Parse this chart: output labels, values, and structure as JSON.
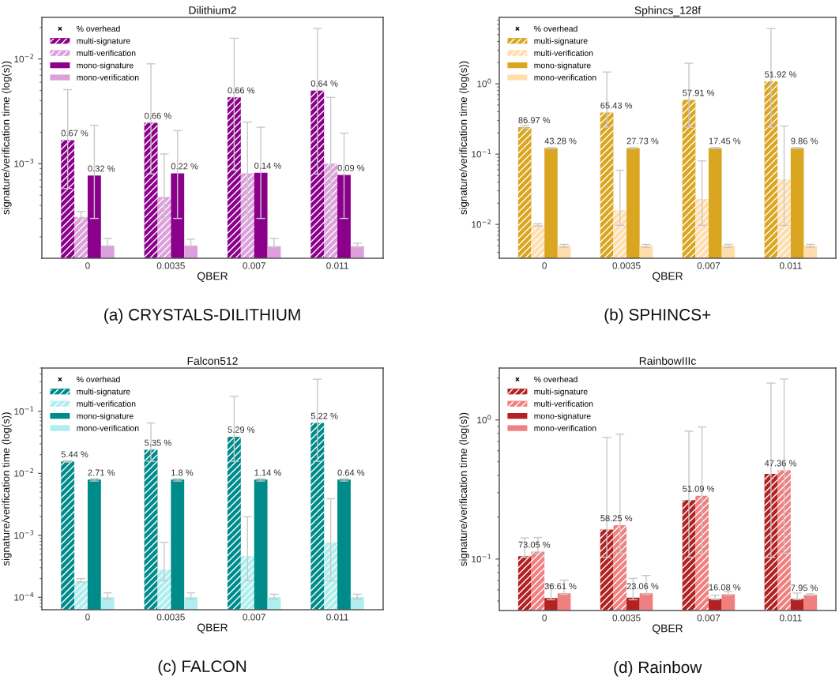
{
  "chart_data": [
    {
      "type": "bar",
      "title": "Dilithium2",
      "xlabel": "QBER",
      "ylabel": "signature/verification time (log(s))",
      "categories": [
        "0",
        "0.0035",
        "0.007",
        "0.011"
      ],
      "log": true,
      "ylim": [
        0.000125,
        0.025
      ],
      "yticks": [
        {
          "value": 0.001,
          "label": "10$^{−3}$"
        },
        {
          "value": 0.01,
          "label": "10$^{−2}$"
        }
      ],
      "legend": "top left",
      "annotations": [
        "0.67 %",
        "0.66 %",
        "0.66 %",
        "0.64 %",
        {
          "text": "0.32 %",
          "x": "0",
          "y": 0.00077
        },
        {
          "text": "0.22 %",
          "x": "0.0035",
          "y": 0.00081
        },
        {
          "text": "0.14 %",
          "x": "0.007",
          "y": 0.00082
        },
        {
          "text": "0.09 %",
          "x": "0.011",
          "y": 0.00078
        },
        "(a) CRYSTALS-DILITHIUM"
      ],
      "series": [
        {
          "name": "% overhead",
          "type": "scatter",
          "marker": "cross",
          "color": "#000000",
          "values": [
            null,
            null,
            null,
            null
          ]
        },
        {
          "name": "multi-signature",
          "color": "#8b008b",
          "line_style": "dashed",
          "values": [
            0.00168,
            0.00246,
            0.0043,
            0.005
          ],
          "errors": [
            [
              0.00058,
              0.0051
            ],
            [
              0.0008,
              0.009
            ],
            [
              0.00087,
              0.0158
            ],
            [
              0.0008,
              0.0196
            ]
          ]
        },
        {
          "name": "multi-verification",
          "color": "#dda0dd",
          "line_style": "dashed",
          "values": [
            0.00031,
            0.00048,
            0.00081,
            0.001
          ],
          "errors": [
            [
              0.0003,
              0.00035
            ],
            [
              0.0003,
              0.00124
            ],
            [
              0.0003,
              0.0025
            ],
            [
              0.0003,
              0.0043
            ]
          ]
        },
        {
          "name": "mono-signature",
          "color": "#8b008b",
          "values": [
            0.00077,
            0.00081,
            0.00082,
            0.00078
          ],
          "errors": [
            [
              0.0003,
              0.00233
            ],
            [
              0.0003,
              0.00207
            ],
            [
              0.0003,
              0.00223
            ],
            [
              0.0003,
              0.00196
            ]
          ]
        },
        {
          "name": "mono-verification",
          "color": "#dda0dd",
          "values": [
            0.000165,
            0.000165,
            0.000163,
            0.000163
          ],
          "errors": [
            [
              0.000164,
              0.000194
            ],
            [
              0.000164,
              0.00019
            ],
            [
              0.00016,
              0.000194
            ],
            [
              0.00016,
              0.000174
            ]
          ]
        }
      ]
    },
    {
      "type": "bar",
      "title": "Sphincs_128f",
      "xlabel": "QBER",
      "ylabel": "signature/verification time (log(s))",
      "categories": [
        "0",
        "0.0035",
        "0.007",
        "0.011"
      ],
      "log": true,
      "ylim": [
        0.0033,
        8.8
      ],
      "yticks": [
        {
          "value": 0.01,
          "label": "10$^{−2}$"
        },
        {
          "value": 0.1,
          "label": "10$^{−1}$"
        },
        {
          "value": 1,
          "label": "10$^{0}$"
        }
      ],
      "legend": "top left",
      "annotations": [
        "86.97 %",
        "65.43 %",
        "57.91 %",
        "51.92 %",
        {
          "text": "43.28 %",
          "x": "0",
          "y": 0.122
        },
        {
          "text": "27.73 %",
          "x": "0.0035",
          "y": 0.122
        },
        {
          "text": "17.45 %",
          "x": "0.007",
          "y": 0.122
        },
        {
          "text": "9.86 %",
          "x": "0.011",
          "y": 0.122
        },
        "(b) SPHINCS+"
      ],
      "series": [
        {
          "name": "% overhead",
          "type": "scatter",
          "marker": "cross",
          "color": "#000000",
          "values": [
            null,
            null,
            null,
            null
          ]
        },
        {
          "name": "multi-signature",
          "color": "#daa520",
          "line_style": "dashed",
          "values": [
            0.241,
            0.39,
            0.59,
            1.08
          ],
          "errors": [
            [
              0.233,
              0.255
            ],
            [
              0.24,
              1.47
            ],
            [
              0.24,
              1.96
            ],
            [
              0.24,
              6.1
            ]
          ]
        },
        {
          "name": "multi-verification",
          "color": "#ffdead",
          "line_style": "dashed",
          "values": [
            0.0097,
            0.0159,
            0.023,
            0.0436
          ],
          "errors": [
            [
              0.0095,
              0.0102
            ],
            [
              0.0097,
              0.059
            ],
            [
              0.0097,
              0.08
            ],
            [
              0.0097,
              0.25
            ]
          ]
        },
        {
          "name": "mono-signature",
          "color": "#daa520",
          "values": [
            0.122,
            0.122,
            0.122,
            0.122
          ],
          "errors": [
            [
              0.12,
              0.124
            ],
            [
              0.12,
              0.124
            ],
            [
              0.12,
              0.124
            ],
            [
              0.12,
              0.124
            ]
          ]
        },
        {
          "name": "mono-verification",
          "color": "#ffdead",
          "values": [
            0.005,
            0.005,
            0.005,
            0.005
          ],
          "errors": [
            [
              0.0047,
              0.0052
            ],
            [
              0.0047,
              0.0052
            ],
            [
              0.0047,
              0.0052
            ],
            [
              0.0047,
              0.0052
            ]
          ]
        }
      ]
    },
    {
      "type": "bar",
      "title": "Falcon512",
      "xlabel": "QBER",
      "ylabel": "signature/verification time (log(s))",
      "categories": [
        "0",
        "0.0035",
        "0.007",
        "0.011"
      ],
      "log": true,
      "ylim": [
        6.3e-05,
        0.5
      ],
      "yticks": [
        {
          "value": 0.0001,
          "label": "10$^{−4}$"
        },
        {
          "value": 0.001,
          "label": "10$^{−3}$"
        },
        {
          "value": 0.01,
          "label": "10$^{−2}$"
        },
        {
          "value": 0.1,
          "label": "10$^{−1}$"
        }
      ],
      "legend": "top left",
      "annotations": [
        "5.44 %",
        "5.35 %",
        "5.29 %",
        "5.22 %",
        {
          "text": "2.71 %",
          "x": "0",
          "y": 0.0079
        },
        {
          "text": "1.8 %",
          "x": "0.0035",
          "y": 0.0079
        },
        {
          "text": "1.14 %",
          "x": "0.007",
          "y": 0.0079
        },
        {
          "text": "0.64 %",
          "x": "0.011",
          "y": 0.0079
        },
        "(c) FALCON"
      ],
      "series": [
        {
          "name": "% overhead",
          "type": "scatter",
          "marker": "cross",
          "color": "#000000",
          "values": [
            null,
            null,
            null,
            null
          ]
        },
        {
          "name": "multi-signature",
          "color": "#008b8b",
          "line_style": "dashed",
          "values": [
            0.0156,
            0.024,
            0.039,
            0.065
          ],
          "errors": [
            [
              0.0152,
              0.016
            ],
            [
              0.0156,
              0.065
            ],
            [
              0.0156,
              0.175
            ],
            [
              0.0156,
              0.33
            ]
          ]
        },
        {
          "name": "multi-verification",
          "color": "#afeeee",
          "line_style": "dashed",
          "values": [
            0.000183,
            0.00028,
            0.00046,
            0.00077
          ],
          "errors": [
            [
              0.000175,
              0.0002
            ],
            [
              0.000185,
              0.00077
            ],
            [
              0.000185,
              0.002
            ],
            [
              0.000185,
              0.0039
            ]
          ]
        },
        {
          "name": "mono-signature",
          "color": "#008b8b",
          "values": [
            0.0079,
            0.0079,
            0.0079,
            0.0079
          ],
          "errors": [
            [
              0.0075,
              0.0082
            ],
            [
              0.0075,
              0.0082
            ],
            [
              0.0075,
              0.0082
            ],
            [
              0.0075,
              0.0082
            ]
          ]
        },
        {
          "name": "mono-verification",
          "color": "#afeeee",
          "values": [
            0.0001,
            0.0001,
            0.0001,
            0.0001
          ],
          "errors": [
            [
              9.4e-05,
              0.000118
            ],
            [
              9.4e-05,
              0.000118
            ],
            [
              9.4e-05,
              0.000112
            ],
            [
              9.4e-05,
              0.000112
            ]
          ]
        }
      ]
    },
    {
      "type": "bar",
      "title": "RainbowIIIc",
      "xlabel": "QBER",
      "ylabel": "signature/verification time (log(s))",
      "categories": [
        "0",
        "0.0035",
        "0.007",
        "0.011"
      ],
      "log": true,
      "ylim": [
        0.0427,
        2.36
      ],
      "yticks": [
        {
          "value": 0.1,
          "label": "10$^{−1}$"
        },
        {
          "value": 1,
          "label": "10$^{0}$"
        }
      ],
      "legend": "top left",
      "annotations": [
        "73.05 %",
        "58.25 %",
        "51.09 %",
        "47.36 %",
        {
          "text": "36.61 %",
          "x": "0",
          "y": 0.0568
        },
        {
          "text": "23.06 %",
          "x": "0.0035",
          "y": 0.0568
        },
        {
          "text": "16.08 %",
          "x": "0.007",
          "y": 0.0558
        },
        {
          "text": "7.95 %",
          "x": "0.011",
          "y": 0.0553
        },
        "(d) Rainbow"
      ],
      "series": [
        {
          "name": "% overhead",
          "type": "scatter",
          "marker": "cross",
          "color": "#000000",
          "values": [
            null,
            null,
            null,
            null
          ]
        },
        {
          "name": "multi-signature",
          "color": "#b22222",
          "line_style": "dashed",
          "values": [
            0.105,
            0.163,
            0.265,
            0.41
          ],
          "errors": [
            [
              0.103,
              0.142
            ],
            [
              0.103,
              0.75
            ],
            [
              0.103,
              0.83
            ],
            [
              0.103,
              1.84
            ]
          ]
        },
        {
          "name": "multi-verification",
          "color": "#f08080",
          "line_style": "dashed",
          "values": [
            0.113,
            0.175,
            0.285,
            0.435
          ],
          "errors": [
            [
              0.11,
              0.143
            ],
            [
              0.11,
              0.79
            ],
            [
              0.11,
              0.89
            ],
            [
              0.11,
              1.97
            ]
          ]
        },
        {
          "name": "mono-signature",
          "color": "#b22222",
          "values": [
            0.0525,
            0.0528,
            0.0517,
            0.0517
          ],
          "errors": [
            [
              0.051,
              0.065
            ],
            [
              0.051,
              0.0726
            ],
            [
              0.0511,
              0.055
            ],
            [
              0.0511,
              0.057
            ]
          ]
        },
        {
          "name": "mono-verification",
          "color": "#f08080",
          "values": [
            0.0568,
            0.0568,
            0.0558,
            0.0553
          ],
          "errors": [
            [
              0.0558,
              0.0706
            ],
            [
              0.0558,
              0.0762
            ],
            [
              0.0552,
              0.0585
            ],
            [
              0.0547,
              0.0563
            ]
          ]
        }
      ]
    }
  ]
}
